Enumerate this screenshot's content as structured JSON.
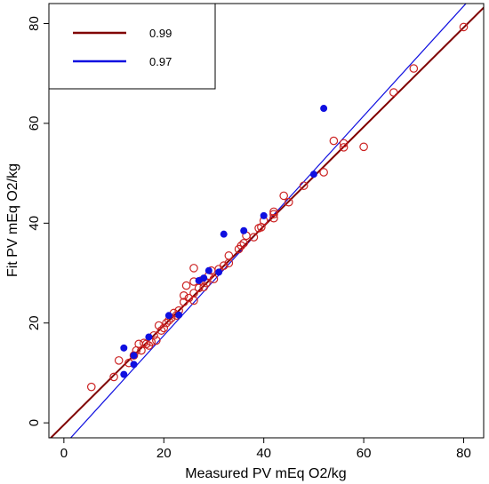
{
  "chart_data": {
    "type": "scatter",
    "xlabel": "Measured PV mEq O2/kg",
    "ylabel": "Fit PV mEq O2/kg",
    "xlim": [
      -3,
      84
    ],
    "ylim": [
      -3,
      84
    ],
    "xticks": [
      0,
      20,
      40,
      60,
      80
    ],
    "yticks": [
      0,
      20,
      40,
      60,
      80
    ],
    "grid": false,
    "legend_position": "top-left",
    "series": [
      {
        "name": "0.99",
        "color": "#cc2222",
        "fit_color": "#800000",
        "marker": "open-circle",
        "fit_line": {
          "intercept": -0.4,
          "slope": 0.995
        },
        "points": [
          [
            5.5,
            7.2
          ],
          [
            10,
            9.2
          ],
          [
            11,
            12.5
          ],
          [
            13,
            12
          ],
          [
            14,
            13.5
          ],
          [
            14.5,
            14.5
          ],
          [
            15,
            15.8
          ],
          [
            15.5,
            14.5
          ],
          [
            16,
            16
          ],
          [
            16.5,
            15.8
          ],
          [
            17,
            15.5
          ],
          [
            17.5,
            16.2
          ],
          [
            18,
            17.5
          ],
          [
            18.5,
            16.5
          ],
          [
            19,
            19.5
          ],
          [
            19.5,
            18.5
          ],
          [
            20,
            19
          ],
          [
            20.5,
            20
          ],
          [
            21,
            20.5
          ],
          [
            21.5,
            21
          ],
          [
            22,
            22
          ],
          [
            22.5,
            21.5
          ],
          [
            23,
            22.5
          ],
          [
            24,
            24.2
          ],
          [
            24,
            25.5
          ],
          [
            24.5,
            27.5
          ],
          [
            25,
            25
          ],
          [
            26,
            24.5
          ],
          [
            26,
            26
          ],
          [
            26,
            28.3
          ],
          [
            26,
            31
          ],
          [
            27,
            27
          ],
          [
            27.5,
            28.5
          ],
          [
            28,
            27.2
          ],
          [
            28.5,
            28
          ],
          [
            29,
            29.5
          ],
          [
            29.5,
            30.5
          ],
          [
            30,
            28.8
          ],
          [
            31,
            30.8
          ],
          [
            32,
            31.5
          ],
          [
            33,
            32
          ],
          [
            33,
            33.5
          ],
          [
            35,
            34.8
          ],
          [
            35.5,
            35.5
          ],
          [
            36,
            36
          ],
          [
            36.5,
            37.5
          ],
          [
            38,
            37.2
          ],
          [
            39,
            39
          ],
          [
            39.5,
            39.2
          ],
          [
            40,
            40.5
          ],
          [
            42,
            41
          ],
          [
            42,
            41.8
          ],
          [
            42,
            42.3
          ],
          [
            44,
            45.5
          ],
          [
            45,
            44.2
          ],
          [
            48,
            47.5
          ],
          [
            52,
            50.2
          ],
          [
            54,
            56.5
          ],
          [
            56,
            55.2
          ],
          [
            56,
            56
          ],
          [
            60,
            55.3
          ],
          [
            66,
            66.2
          ],
          [
            70,
            71
          ],
          [
            80,
            79.3
          ]
        ]
      },
      {
        "name": "0.97",
        "color": "#1010e0",
        "fit_color": "#1010e0",
        "marker": "filled-circle",
        "fit_line": {
          "intercept": -4.5,
          "slope": 1.1
        },
        "points": [
          [
            12,
            15
          ],
          [
            12,
            9.7
          ],
          [
            14,
            11.7
          ],
          [
            14,
            13.5
          ],
          [
            17,
            17.2
          ],
          [
            21,
            21.5
          ],
          [
            23,
            21.6
          ],
          [
            27,
            28.5
          ],
          [
            28,
            29
          ],
          [
            29,
            30.5
          ],
          [
            31,
            30.2
          ],
          [
            32,
            37.8
          ],
          [
            36,
            38.5
          ],
          [
            40,
            41.5
          ],
          [
            50,
            49.8
          ],
          [
            52,
            63
          ]
        ]
      }
    ]
  }
}
